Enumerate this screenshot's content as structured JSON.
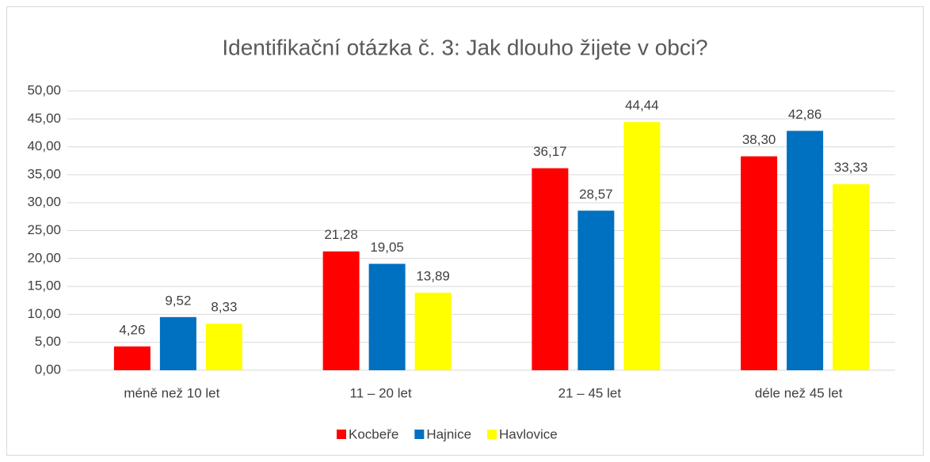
{
  "chart_data": {
    "type": "bar",
    "title": "Identifikační otázka č. 3: Jak dlouho žijete v obci?",
    "categories": [
      "méně než 10 let",
      "11 – 20 let",
      "21 – 45 let",
      "déle než 45 let"
    ],
    "series": [
      {
        "name": "Kocbeře",
        "color": "#ff0000",
        "values": [
          4.26,
          21.28,
          36.17,
          38.3
        ],
        "value_labels": [
          "4,26",
          "21,28",
          "36,17",
          "38,30"
        ]
      },
      {
        "name": "Hajnice",
        "color": "#0070c0",
        "values": [
          9.52,
          19.05,
          28.57,
          42.86
        ],
        "value_labels": [
          "9,52",
          "19,05",
          "28,57",
          "42,86"
        ]
      },
      {
        "name": "Havlovice",
        "color": "#ffff00",
        "values": [
          8.33,
          13.89,
          44.44,
          33.33
        ],
        "value_labels": [
          "8,33",
          "13,89",
          "44,44",
          "33,33"
        ]
      }
    ],
    "ylim": [
      0,
      50
    ],
    "yticks": [
      {
        "value": 0,
        "label": "0,00"
      },
      {
        "value": 5,
        "label": "5,00"
      },
      {
        "value": 10,
        "label": "10,00"
      },
      {
        "value": 15,
        "label": "15,00"
      },
      {
        "value": 20,
        "label": "20,00"
      },
      {
        "value": 25,
        "label": "25,00"
      },
      {
        "value": 30,
        "label": "30,00"
      },
      {
        "value": 35,
        "label": "35,00"
      },
      {
        "value": 40,
        "label": "40,00"
      },
      {
        "value": 45,
        "label": "45,00"
      },
      {
        "value": 50,
        "label": "50,00"
      }
    ],
    "grid": true,
    "legend": "bottom"
  }
}
